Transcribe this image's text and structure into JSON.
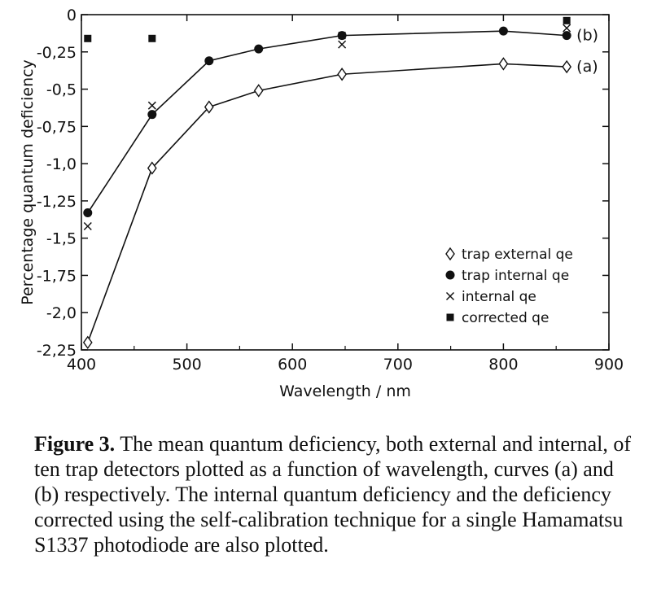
{
  "chart_data": {
    "type": "scatter",
    "title": "",
    "xlabel": "Wavelength / nm",
    "ylabel": "Percentage quantum deficiency",
    "xlim": [
      400,
      900
    ],
    "ylim": [
      -2.25,
      0
    ],
    "x_ticks": [
      400,
      500,
      600,
      700,
      800,
      900
    ],
    "x_tick_labels": [
      "400",
      "500",
      "600",
      "700",
      "800",
      "900"
    ],
    "y_ticks": [
      0,
      -0.25,
      -0.5,
      -0.75,
      -1.0,
      -1.25,
      -1.5,
      -1.75,
      -2.0,
      -2.25
    ],
    "y_tick_labels": [
      "0",
      "-0,25",
      "-0,5",
      "-0,75",
      "-1,0",
      "-1,25",
      "-1,5",
      "-1,75",
      "-2,0",
      "-2,25"
    ],
    "grid": false,
    "legend_position": "bottom-right",
    "series": [
      {
        "name": "trap external qe",
        "marker": "diamond-open",
        "line": true,
        "curve_label": "(a)",
        "x": [
          406,
          467,
          521,
          568,
          647,
          800,
          860
        ],
        "y": [
          -2.2,
          -1.03,
          -0.62,
          -0.51,
          -0.4,
          -0.33,
          -0.35
        ]
      },
      {
        "name": "trap internal qe",
        "marker": "circle-filled",
        "line": true,
        "curve_label": "(b)",
        "x": [
          406,
          467,
          521,
          568,
          647,
          800,
          860
        ],
        "y": [
          -1.33,
          -0.67,
          -0.31,
          -0.23,
          -0.14,
          -0.11,
          -0.14
        ]
      },
      {
        "name": "internal qe",
        "marker": "x",
        "line": false,
        "x": [
          406,
          467,
          647,
          860
        ],
        "y": [
          -1.42,
          -0.61,
          -0.2,
          -0.09
        ]
      },
      {
        "name": "corrected qe",
        "marker": "square-filled",
        "line": false,
        "x": [
          406,
          467,
          647,
          860
        ],
        "y": [
          -0.16,
          -0.16,
          -0.14,
          -0.04
        ]
      }
    ]
  },
  "caption": {
    "label": "Figure 3.",
    "text": " The mean quantum deficiency, both external and internal, of ten trap detectors plotted as a function of wavelength, curves (a) and (b) respectively. The internal quantum deficiency and the deficiency corrected using the self-calibration technique for a single Hamamatsu S1337 photodiode are also plotted."
  }
}
